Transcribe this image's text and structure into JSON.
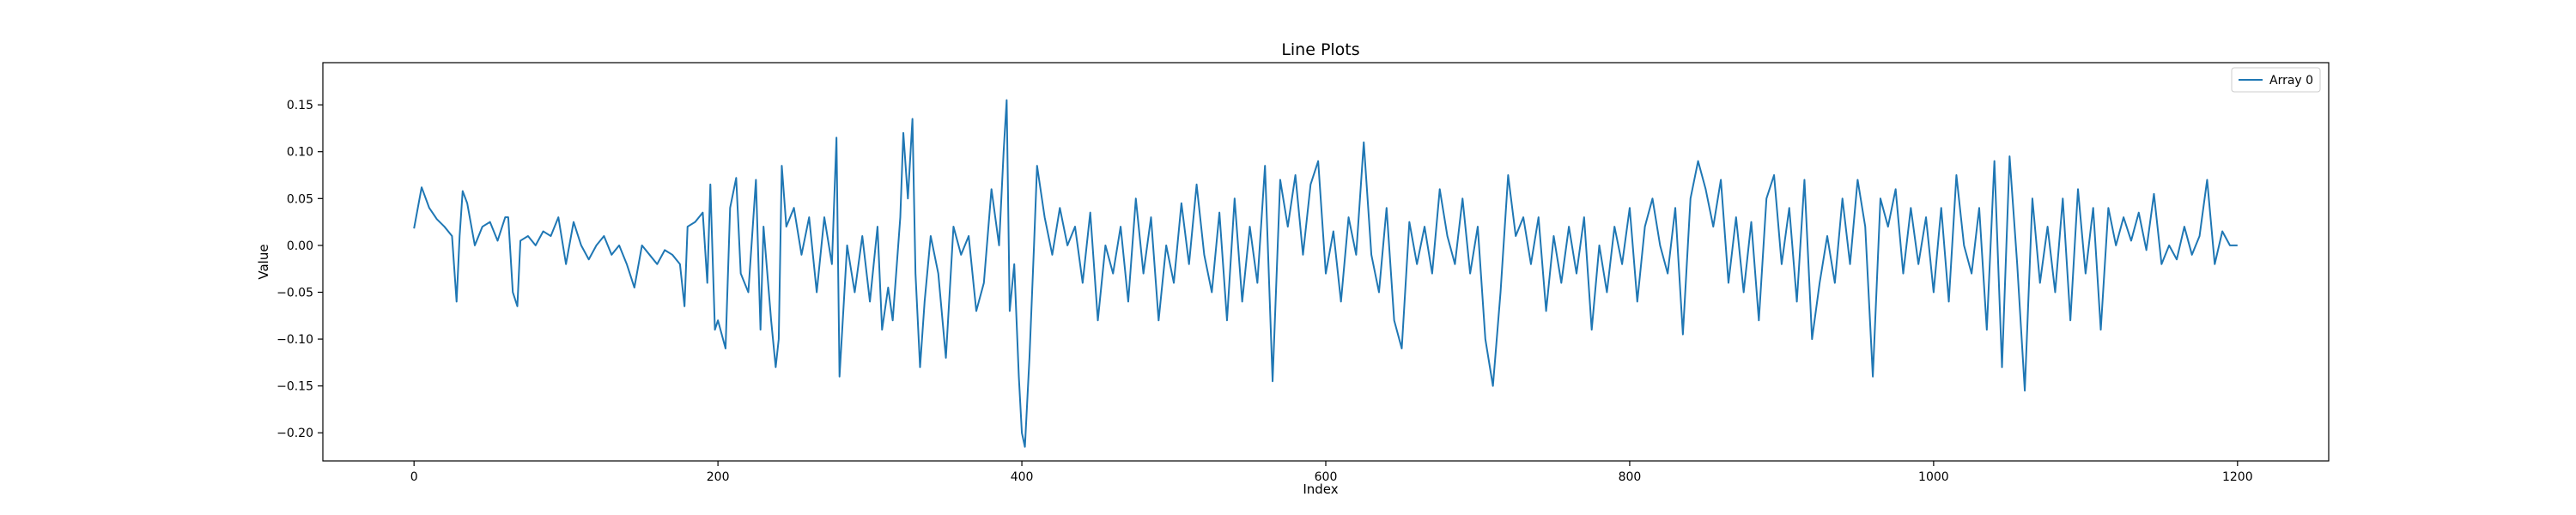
{
  "chart_data": {
    "type": "line",
    "title": "Line Plots",
    "xlabel": "Index",
    "ylabel": "Value",
    "xlim": [
      -60,
      1260
    ],
    "ylim": [
      -0.23,
      0.195
    ],
    "xticks": [
      0,
      200,
      400,
      600,
      800,
      1000,
      1200
    ],
    "yticks": [
      -0.2,
      -0.15,
      -0.1,
      -0.05,
      0.0,
      0.05,
      0.1,
      0.15
    ],
    "xtick_labels": [
      "0",
      "200",
      "400",
      "600",
      "800",
      "1000",
      "1200"
    ],
    "ytick_labels": [
      "−0.20",
      "−0.15",
      "−0.10",
      "−0.05",
      "0.00",
      "0.05",
      "0.10",
      "0.15"
    ],
    "grid": false,
    "legend_position": "top-right",
    "line_color": "#1f77b4",
    "series": [
      {
        "name": "Array 0",
        "x_step": 5,
        "points": [
          [
            0,
            0.018
          ],
          [
            5,
            0.062
          ],
          [
            10,
            0.04
          ],
          [
            15,
            0.028
          ],
          [
            20,
            0.02
          ],
          [
            25,
            0.01
          ],
          [
            28,
            -0.06
          ],
          [
            30,
            0.01
          ],
          [
            32,
            0.058
          ],
          [
            35,
            0.045
          ],
          [
            40,
            0.0
          ],
          [
            45,
            0.02
          ],
          [
            50,
            0.025
          ],
          [
            55,
            0.005
          ],
          [
            60,
            0.03
          ],
          [
            62,
            0.03
          ],
          [
            65,
            -0.05
          ],
          [
            68,
            -0.065
          ],
          [
            70,
            0.005
          ],
          [
            75,
            0.01
          ],
          [
            80,
            0.0
          ],
          [
            85,
            0.015
          ],
          [
            90,
            0.01
          ],
          [
            95,
            0.03
          ],
          [
            100,
            -0.02
          ],
          [
            105,
            0.025
          ],
          [
            110,
            0.0
          ],
          [
            115,
            -0.015
          ],
          [
            120,
            0.0
          ],
          [
            125,
            0.01
          ],
          [
            130,
            -0.01
          ],
          [
            135,
            0.0
          ],
          [
            140,
            -0.02
          ],
          [
            145,
            -0.045
          ],
          [
            150,
            0.0
          ],
          [
            155,
            -0.01
          ],
          [
            160,
            -0.02
          ],
          [
            165,
            -0.005
          ],
          [
            170,
            -0.01
          ],
          [
            175,
            -0.02
          ],
          [
            178,
            -0.065
          ],
          [
            180,
            0.02
          ],
          [
            185,
            0.025
          ],
          [
            190,
            0.035
          ],
          [
            193,
            -0.04
          ],
          [
            195,
            0.065
          ],
          [
            198,
            -0.09
          ],
          [
            200,
            -0.08
          ],
          [
            205,
            -0.11
          ],
          [
            208,
            0.04
          ],
          [
            212,
            0.072
          ],
          [
            215,
            -0.03
          ],
          [
            220,
            -0.05
          ],
          [
            225,
            0.07
          ],
          [
            228,
            -0.09
          ],
          [
            230,
            0.02
          ],
          [
            235,
            -0.08
          ],
          [
            238,
            -0.13
          ],
          [
            240,
            -0.1
          ],
          [
            242,
            0.085
          ],
          [
            245,
            0.02
          ],
          [
            250,
            0.04
          ],
          [
            255,
            -0.01
          ],
          [
            260,
            0.03
          ],
          [
            265,
            -0.05
          ],
          [
            270,
            0.03
          ],
          [
            275,
            -0.02
          ],
          [
            278,
            0.115
          ],
          [
            280,
            -0.14
          ],
          [
            285,
            0.0
          ],
          [
            290,
            -0.05
          ],
          [
            295,
            0.01
          ],
          [
            300,
            -0.06
          ],
          [
            305,
            0.02
          ],
          [
            308,
            -0.09
          ],
          [
            312,
            -0.045
          ],
          [
            315,
            -0.08
          ],
          [
            320,
            0.03
          ],
          [
            322,
            0.12
          ],
          [
            325,
            0.05
          ],
          [
            328,
            0.135
          ],
          [
            330,
            -0.03
          ],
          [
            333,
            -0.13
          ],
          [
            336,
            -0.06
          ],
          [
            340,
            0.01
          ],
          [
            345,
            -0.03
          ],
          [
            350,
            -0.12
          ],
          [
            355,
            0.02
          ],
          [
            360,
            -0.01
          ],
          [
            365,
            0.01
          ],
          [
            370,
            -0.07
          ],
          [
            375,
            -0.04
          ],
          [
            380,
            0.06
          ],
          [
            385,
            0.0
          ],
          [
            388,
            0.1
          ],
          [
            390,
            0.155
          ],
          [
            392,
            -0.07
          ],
          [
            395,
            -0.02
          ],
          [
            398,
            -0.14
          ],
          [
            400,
            -0.2
          ],
          [
            402,
            -0.215
          ],
          [
            405,
            -0.12
          ],
          [
            408,
            0.0
          ],
          [
            410,
            0.085
          ],
          [
            415,
            0.03
          ],
          [
            420,
            -0.01
          ],
          [
            425,
            0.04
          ],
          [
            430,
            0.0
          ],
          [
            435,
            0.02
          ],
          [
            440,
            -0.04
          ],
          [
            445,
            0.035
          ],
          [
            450,
            -0.08
          ],
          [
            455,
            0.0
          ],
          [
            460,
            -0.03
          ],
          [
            465,
            0.02
          ],
          [
            470,
            -0.06
          ],
          [
            475,
            0.05
          ],
          [
            480,
            -0.03
          ],
          [
            485,
            0.03
          ],
          [
            490,
            -0.08
          ],
          [
            495,
            0.0
          ],
          [
            500,
            -0.04
          ],
          [
            505,
            0.045
          ],
          [
            510,
            -0.02
          ],
          [
            515,
            0.065
          ],
          [
            520,
            -0.01
          ],
          [
            525,
            -0.05
          ],
          [
            530,
            0.035
          ],
          [
            535,
            -0.08
          ],
          [
            540,
            0.05
          ],
          [
            545,
            -0.06
          ],
          [
            550,
            0.02
          ],
          [
            555,
            -0.04
          ],
          [
            560,
            0.085
          ],
          [
            565,
            -0.145
          ],
          [
            570,
            0.07
          ],
          [
            575,
            0.02
          ],
          [
            580,
            0.075
          ],
          [
            585,
            -0.01
          ],
          [
            590,
            0.065
          ],
          [
            595,
            0.09
          ],
          [
            600,
            -0.03
          ],
          [
            605,
            0.015
          ],
          [
            610,
            -0.06
          ],
          [
            615,
            0.03
          ],
          [
            620,
            -0.01
          ],
          [
            625,
            0.11
          ],
          [
            630,
            -0.01
          ],
          [
            635,
            -0.05
          ],
          [
            640,
            0.04
          ],
          [
            645,
            -0.08
          ],
          [
            650,
            -0.11
          ],
          [
            655,
            0.025
          ],
          [
            660,
            -0.02
          ],
          [
            665,
            0.02
          ],
          [
            670,
            -0.03
          ],
          [
            675,
            0.06
          ],
          [
            680,
            0.01
          ],
          [
            685,
            -0.02
          ],
          [
            690,
            0.05
          ],
          [
            695,
            -0.03
          ],
          [
            700,
            0.02
          ],
          [
            705,
            -0.1
          ],
          [
            710,
            -0.15
          ],
          [
            715,
            -0.05
          ],
          [
            720,
            0.075
          ],
          [
            725,
            0.01
          ],
          [
            730,
            0.03
          ],
          [
            735,
            -0.02
          ],
          [
            740,
            0.03
          ],
          [
            745,
            -0.07
          ],
          [
            750,
            0.01
          ],
          [
            755,
            -0.04
          ],
          [
            760,
            0.02
          ],
          [
            765,
            -0.03
          ],
          [
            770,
            0.03
          ],
          [
            775,
            -0.09
          ],
          [
            780,
            0.0
          ],
          [
            785,
            -0.05
          ],
          [
            790,
            0.02
          ],
          [
            795,
            -0.02
          ],
          [
            800,
            0.04
          ],
          [
            805,
            -0.06
          ],
          [
            810,
            0.02
          ],
          [
            815,
            0.05
          ],
          [
            820,
            0.0
          ],
          [
            825,
            -0.03
          ],
          [
            830,
            0.04
          ],
          [
            835,
            -0.095
          ],
          [
            840,
            0.05
          ],
          [
            845,
            0.09
          ],
          [
            850,
            0.06
          ],
          [
            855,
            0.02
          ],
          [
            860,
            0.07
          ],
          [
            865,
            -0.04
          ],
          [
            870,
            0.03
          ],
          [
            875,
            -0.05
          ],
          [
            880,
            0.025
          ],
          [
            885,
            -0.08
          ],
          [
            890,
            0.05
          ],
          [
            895,
            0.075
          ],
          [
            900,
            -0.02
          ],
          [
            905,
            0.04
          ],
          [
            910,
            -0.06
          ],
          [
            915,
            0.07
          ],
          [
            920,
            -0.1
          ],
          [
            925,
            -0.04
          ],
          [
            930,
            0.01
          ],
          [
            935,
            -0.04
          ],
          [
            940,
            0.05
          ],
          [
            945,
            -0.02
          ],
          [
            950,
            0.07
          ],
          [
            955,
            0.02
          ],
          [
            960,
            -0.14
          ],
          [
            965,
            0.05
          ],
          [
            970,
            0.02
          ],
          [
            975,
            0.06
          ],
          [
            980,
            -0.03
          ],
          [
            985,
            0.04
          ],
          [
            990,
            -0.02
          ],
          [
            995,
            0.03
          ],
          [
            1000,
            -0.05
          ],
          [
            1005,
            0.04
          ],
          [
            1010,
            -0.06
          ],
          [
            1015,
            0.075
          ],
          [
            1020,
            0.0
          ],
          [
            1025,
            -0.03
          ],
          [
            1030,
            0.04
          ],
          [
            1035,
            -0.09
          ],
          [
            1040,
            0.09
          ],
          [
            1045,
            -0.13
          ],
          [
            1050,
            0.095
          ],
          [
            1055,
            -0.02
          ],
          [
            1060,
            -0.155
          ],
          [
            1065,
            0.05
          ],
          [
            1070,
            -0.04
          ],
          [
            1075,
            0.02
          ],
          [
            1080,
            -0.05
          ],
          [
            1085,
            0.05
          ],
          [
            1090,
            -0.08
          ],
          [
            1095,
            0.06
          ],
          [
            1100,
            -0.03
          ],
          [
            1105,
            0.04
          ],
          [
            1110,
            -0.09
          ],
          [
            1115,
            0.04
          ],
          [
            1120,
            0.0
          ],
          [
            1125,
            0.03
          ],
          [
            1130,
            0.005
          ],
          [
            1135,
            0.035
          ],
          [
            1140,
            -0.005
          ],
          [
            1145,
            0.055
          ],
          [
            1150,
            -0.02
          ],
          [
            1155,
            0.0
          ],
          [
            1160,
            -0.015
          ],
          [
            1165,
            0.02
          ],
          [
            1170,
            -0.01
          ],
          [
            1175,
            0.01
          ],
          [
            1180,
            0.07
          ],
          [
            1185,
            -0.02
          ],
          [
            1190,
            0.015
          ],
          [
            1195,
            0.0
          ],
          [
            1200,
            0.0
          ]
        ]
      }
    ]
  }
}
